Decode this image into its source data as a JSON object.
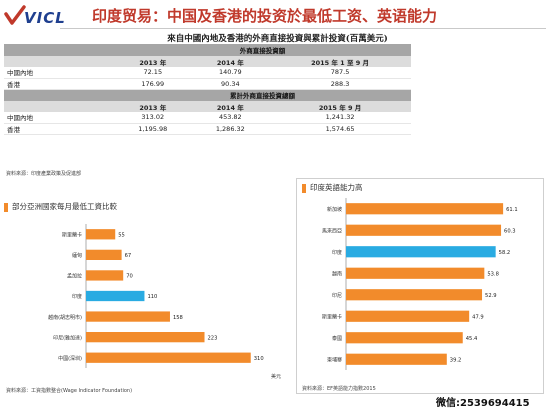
{
  "header": {
    "logo_text": "VICL",
    "title": "印度贸易：中国及香港的投资於最低工资、英语能力"
  },
  "table": {
    "caption": "來自中國內地及香港的外商直接投資與累計投資(百萬美元)",
    "section1": {
      "title": "外商直接投資額",
      "years": [
        "2013 年",
        "2014 年",
        "2015 年 1 至 9 月"
      ],
      "rows": [
        {
          "label": "中國內地",
          "values": [
            "72.15",
            "140.79",
            "787.5"
          ]
        },
        {
          "label": "香港",
          "values": [
            "176.99",
            "90.34",
            "288.3"
          ]
        }
      ]
    },
    "section2": {
      "title": "累計外商直接投資總額",
      "years": [
        "2013 年",
        "2014 年",
        "2015 年 9 月"
      ],
      "rows": [
        {
          "label": "中國內地",
          "values": [
            "313.02",
            "453.82",
            "1,241.32"
          ]
        },
        {
          "label": "香港",
          "values": [
            "1,195.98",
            "1,286.32",
            "1,574.65"
          ]
        }
      ]
    },
    "source": "資料來源：印度產業政策及促進部"
  },
  "wage_panel": {
    "title": "部分亞洲國家每月最低工資比較",
    "unit": "美元",
    "source": "資料來源：工資指數整合(Wage Indicator Foundation)"
  },
  "english_panel": {
    "title": "印度英語能力高",
    "source": "資料來源：EF英語能力指數2015"
  },
  "footer": {
    "wechat": "微信:2539694415"
  },
  "colors": {
    "orange": "#f28b2b",
    "highlight": "#29abe2",
    "title_red": "#c0392b",
    "logo_blue": "#1f3f8f"
  },
  "chart_data": [
    {
      "type": "bar",
      "orientation": "horizontal",
      "categories": [
        "斯里蘭卡",
        "緬甸",
        "孟加拉",
        "印度",
        "越南(胡志明市)",
        "印尼(雅加達)",
        "中國(深圳)"
      ],
      "values": [
        55,
        67,
        70,
        110,
        158,
        223,
        310
      ],
      "highlight_category": "印度",
      "xlim": [
        0,
        350
      ],
      "title": "部分亞洲國家每月最低工資比較",
      "xlabel": "美元",
      "ylabel": "",
      "grid": false,
      "legend": "none"
    },
    {
      "type": "bar",
      "orientation": "horizontal",
      "categories": [
        "新加坡",
        "馬來西亞",
        "印度",
        "越南",
        "印尼",
        "斯里蘭卡",
        "泰國",
        "柬埔寨"
      ],
      "values": [
        61.1,
        60.3,
        58.2,
        53.8,
        52.9,
        47.9,
        45.4,
        39.2
      ],
      "highlight_category": "印度",
      "xlim": [
        0,
        70
      ],
      "title": "印度英語能力高",
      "xlabel": "",
      "ylabel": "",
      "grid": false,
      "legend": "none"
    }
  ]
}
